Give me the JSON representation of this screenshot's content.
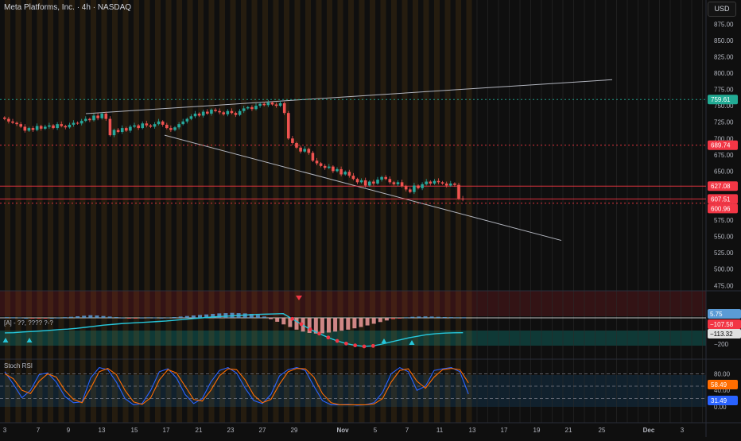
{
  "header": {
    "title": "Meta Platforms, Inc. · 4h · NASDAQ",
    "currency": "USD"
  },
  "colors": {
    "background": "#0f0f0f",
    "up": "#26a69a",
    "down": "#ef5350",
    "grid_orange": "#8a5a10",
    "green_line": "#22ab94",
    "red_line": "#f23645",
    "trendline": "#b2b5be",
    "stoch_k": "#2962ff",
    "stoch_d": "#ff6d00"
  },
  "chart_data": [
    {
      "type": "candlestick",
      "name": "price",
      "title": "Meta Platforms, Inc. · 4h · NASDAQ",
      "x_ticks": [
        "3",
        "7",
        "9",
        "13",
        "15",
        "17",
        "21",
        "23",
        "27",
        "29",
        "Nov",
        "5",
        "7",
        "11",
        "13",
        "17",
        "19",
        "21",
        "25",
        "Dec",
        "3"
      ],
      "y_ticks": [
        875,
        850,
        825,
        800,
        775,
        750,
        725,
        700,
        675,
        650,
        625,
        600,
        575,
        550,
        525,
        500,
        475
      ],
      "ylim": [
        462,
        890
      ],
      "close": [
        730,
        726,
        724,
        722,
        718,
        712,
        716,
        713,
        719,
        715,
        718,
        720,
        716,
        722,
        719,
        717,
        721,
        724,
        723,
        727,
        730,
        728,
        735,
        731,
        738,
        730,
        705,
        713,
        710,
        716,
        712,
        718,
        720,
        716,
        723,
        720,
        718,
        722,
        726,
        721,
        716,
        713,
        717,
        722,
        726,
        730,
        734,
        738,
        735,
        741,
        738,
        744,
        742,
        740,
        737,
        742,
        739,
        736,
        742,
        746,
        748,
        745,
        750,
        753,
        751,
        755,
        752,
        750,
        754,
        739,
        700,
        693,
        686,
        680,
        684,
        678,
        666,
        662,
        658,
        655,
        657,
        650,
        653,
        645,
        649,
        643,
        638,
        633,
        636,
        628,
        634,
        631,
        637,
        641,
        638,
        633,
        630,
        633,
        627,
        622,
        618,
        628,
        624,
        630,
        634,
        631,
        635,
        633,
        631,
        628,
        631,
        629,
        608,
        607
      ],
      "horizontal_lines": [
        {
          "value": 759.61,
          "label": "759.61",
          "color": "#22ab94"
        },
        {
          "value": 689.74,
          "label": "689.74",
          "color": "#f23645"
        },
        {
          "value": 627.08,
          "label": "627.08",
          "color": "#f23645"
        },
        {
          "value": 607.51,
          "label": "607.51",
          "color": "#f23645"
        },
        {
          "value": 600.96,
          "label": "600.96",
          "color": "#f23645"
        }
      ],
      "trendlines": [
        {
          "from": {
            "x": "Oct 9",
            "y": 738
          },
          "to": {
            "x": "Nov 21",
            "y": 790
          }
        },
        {
          "from": {
            "x": "Oct 17",
            "y": 705
          },
          "to": {
            "x": "Nov 21",
            "y": 544
          }
        }
      ]
    },
    {
      "type": "histogram",
      "name": "oscillator",
      "label": "[A] - ??, ???? ?-?",
      "values": [
        5,
        4,
        3,
        0,
        -2,
        -4,
        -2,
        0,
        2,
        5,
        8,
        12,
        16,
        20,
        18,
        14,
        10,
        6,
        2,
        -2,
        -1,
        2,
        4,
        3,
        1,
        3,
        6,
        10,
        14,
        18,
        22,
        26,
        30,
        34,
        36,
        38,
        36,
        34,
        30,
        22,
        10,
        -10,
        -30,
        -50,
        -70,
        -90,
        -105,
        -115,
        -120,
        -118,
        -112,
        -105,
        -98,
        -90,
        -80,
        -70,
        -58,
        -45,
        -32,
        -20,
        -10,
        -2,
        4,
        8,
        10,
        11,
        10,
        8,
        6,
        5,
        4,
        4
      ],
      "signal_line": [
        -115,
        -113,
        -108,
        -104,
        -100,
        -95,
        -90,
        -86,
        -80,
        -72,
        -64,
        -56,
        -50,
        -44,
        -40,
        -36,
        -32,
        -28,
        -24,
        -18,
        -12,
        -6,
        0,
        6,
        10,
        14,
        18,
        22,
        26,
        28,
        30,
        32,
        -8,
        -48,
        -88,
        -120,
        -150,
        -176,
        -196,
        -210,
        -218,
        -214,
        -200,
        -184,
        -168,
        -152,
        -140,
        -128,
        -121,
        -116,
        -114,
        -113
      ],
      "y_ticks": [
        -200
      ],
      "values_shown": [
        {
          "value": 5.75,
          "label": "5.75",
          "color": "#5b9bd5"
        },
        {
          "value": -107.58,
          "label": "−107.58",
          "color": "#f23645"
        },
        {
          "value": -113.32,
          "label": "−113.32",
          "color": "#ffffff"
        }
      ]
    },
    {
      "type": "line",
      "name": "stoch_rsi",
      "label": "Stoch RSI",
      "ylim": [
        0,
        100
      ],
      "y_ticks": [
        80,
        40,
        0
      ],
      "bands": [
        80,
        50,
        20
      ],
      "series": [
        {
          "name": "K",
          "color": "#2962ff",
          "values": [
            85,
            55,
            22,
            40,
            78,
            82,
            60,
            25,
            10,
            12,
            70,
            95,
            90,
            60,
            20,
            5,
            8,
            40,
            85,
            92,
            70,
            30,
            8,
            20,
            60,
            88,
            95,
            82,
            45,
            15,
            8,
            30,
            75,
            90,
            95,
            88,
            50,
            15,
            5,
            5,
            6,
            4,
            5,
            10,
            35,
            80,
            95,
            85,
            40,
            50,
            88,
            92,
            95,
            85,
            31
          ]
        },
        {
          "name": "D",
          "color": "#ff6d00",
          "values": [
            80,
            68,
            40,
            32,
            62,
            80,
            72,
            40,
            18,
            10,
            45,
            85,
            93,
            78,
            40,
            12,
            6,
            22,
            65,
            90,
            82,
            50,
            18,
            14,
            40,
            75,
            92,
            90,
            65,
            28,
            10,
            18,
            55,
            85,
            93,
            92,
            72,
            32,
            10,
            5,
            5,
            5,
            5,
            7,
            20,
            60,
            88,
            92,
            62,
            45,
            72,
            90,
            93,
            90,
            58
          ]
        }
      ],
      "values_shown": [
        {
          "value": 58.49,
          "label": "58.49",
          "color": "#ff6d00"
        },
        {
          "value": 31.49,
          "label": "31.49",
          "color": "#2962ff"
        }
      ]
    }
  ]
}
